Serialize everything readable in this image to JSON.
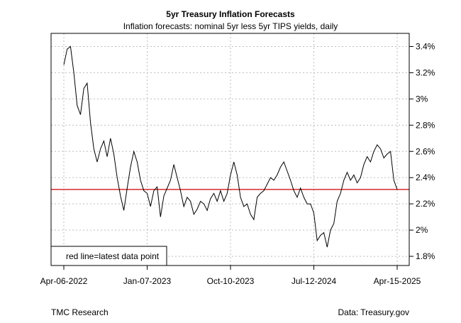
{
  "chart_data": {
    "type": "line",
    "title": "5yr Treasury Inflation Forecasts",
    "subtitle": "Inflation forecasts: nominal 5yr less 5yr TIPS yields, daily",
    "x_tick_labels": [
      "Apr-06-2022",
      "Jan-07-2023",
      "Oct-10-2023",
      "Jul-12-2024",
      "Apr-15-2025"
    ],
    "x_range": [
      "Apr-06-2022",
      "Apr-15-2025"
    ],
    "y_tick_labels": [
      "1.8%",
      "2%",
      "2.2%",
      "2.4%",
      "2.6%",
      "2.8%",
      "3%",
      "3.2%",
      "3.4%"
    ],
    "y_ticks": [
      1.8,
      2.0,
      2.2,
      2.4,
      2.6,
      2.8,
      3.0,
      3.2,
      3.4
    ],
    "ylim": [
      1.73,
      3.5
    ],
    "y_axis_side": "right",
    "grid": true,
    "reference_line": {
      "value": 2.31,
      "color": "#cc0000"
    },
    "legend": {
      "text": "red line=latest data point",
      "placement": "bottom-left"
    },
    "series": [
      {
        "color": "#000000",
        "x": [
          0,
          1,
          2,
          3,
          4,
          5,
          6,
          7,
          8,
          9,
          10,
          11,
          12,
          13,
          14,
          15,
          16,
          17,
          18,
          19,
          20,
          21,
          22,
          23,
          24,
          25,
          26,
          27,
          28,
          29,
          30,
          31,
          32,
          33,
          34,
          35,
          36,
          37,
          38,
          39,
          40,
          41,
          42,
          43,
          44,
          45,
          46,
          47,
          48,
          49,
          50,
          51,
          52,
          53,
          54,
          55,
          56,
          57,
          58,
          59,
          60,
          61,
          62,
          63,
          64,
          65,
          66,
          67,
          68,
          69,
          70,
          71,
          72,
          73,
          74,
          75,
          76,
          77,
          78,
          79,
          80,
          81,
          82,
          83,
          84,
          85,
          86,
          87,
          88,
          89,
          90,
          91,
          92,
          93,
          94,
          95,
          96,
          97,
          98,
          99,
          100
        ],
        "y": [
          3.26,
          3.38,
          3.4,
          3.2,
          2.95,
          2.88,
          3.08,
          3.12,
          2.82,
          2.62,
          2.52,
          2.62,
          2.68,
          2.56,
          2.7,
          2.58,
          2.4,
          2.26,
          2.15,
          2.32,
          2.48,
          2.6,
          2.52,
          2.38,
          2.3,
          2.28,
          2.18,
          2.3,
          2.33,
          2.1,
          2.26,
          2.32,
          2.38,
          2.5,
          2.4,
          2.3,
          2.18,
          2.25,
          2.22,
          2.12,
          2.16,
          2.22,
          2.2,
          2.15,
          2.24,
          2.28,
          2.22,
          2.3,
          2.22,
          2.28,
          2.42,
          2.52,
          2.42,
          2.25,
          2.18,
          2.2,
          2.12,
          2.08,
          2.25,
          2.28,
          2.3,
          2.35,
          2.4,
          2.38,
          2.42,
          2.48,
          2.52,
          2.45,
          2.38,
          2.3,
          2.25,
          2.32,
          2.25,
          2.2,
          2.2,
          2.13,
          1.92,
          1.96,
          1.98,
          1.87,
          2.0,
          2.05,
          2.22,
          2.28,
          2.38,
          2.44,
          2.38,
          2.42,
          2.36,
          2.4,
          2.5,
          2.56,
          2.52,
          2.6,
          2.65,
          2.62,
          2.55,
          2.58,
          2.6,
          2.38,
          2.31
        ]
      }
    ]
  },
  "footer": {
    "left": "TMC Research",
    "right": "Data: Treasury.gov"
  }
}
